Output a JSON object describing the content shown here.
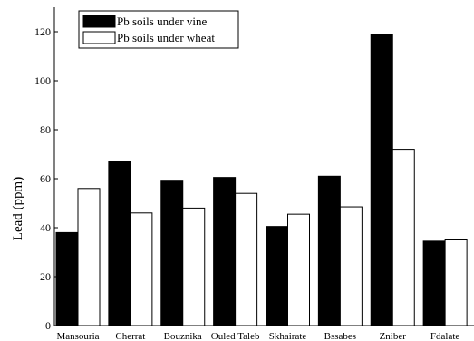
{
  "chart_data": {
    "type": "bar",
    "title": "",
    "xlabel": "",
    "ylabel": "Lead (ppm)",
    "ylim": [
      0,
      130
    ],
    "yticks": [
      0,
      20,
      40,
      60,
      80,
      100,
      120
    ],
    "categories": [
      "Mansouria",
      "Cherrat",
      "Bouznika",
      "Ouled Taleb",
      "Skhairate",
      "Bssabes",
      "Zniber",
      "Fdalate"
    ],
    "series": [
      {
        "name": "Pb soils under vine",
        "color": "#000000",
        "values": [
          38,
          67,
          59,
          60.5,
          40.5,
          61,
          119,
          34.5
        ]
      },
      {
        "name": "Pb soils under wheat",
        "color": "#ffffff",
        "values": [
          56,
          46,
          48,
          54,
          45.5,
          48.5,
          72,
          35
        ]
      }
    ],
    "legend_position": "top-left",
    "grid": false
  }
}
